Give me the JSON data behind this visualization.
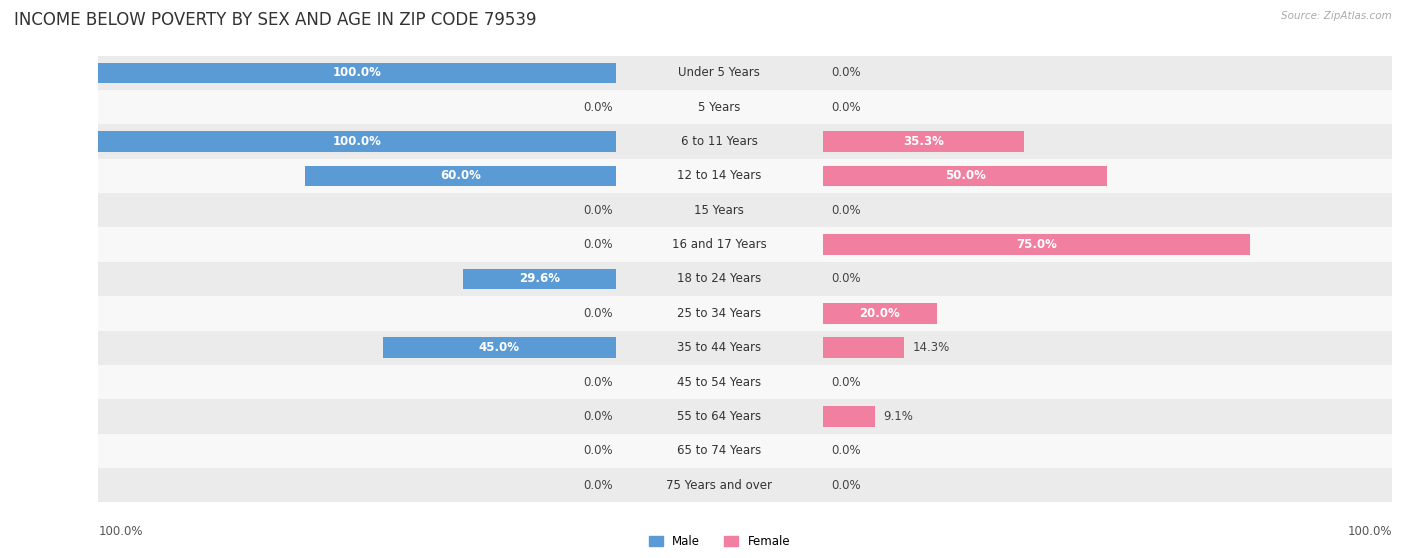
{
  "title": "INCOME BELOW POVERTY BY SEX AND AGE IN ZIP CODE 79539",
  "source": "Source: ZipAtlas.com",
  "categories": [
    "Under 5 Years",
    "5 Years",
    "6 to 11 Years",
    "12 to 14 Years",
    "15 Years",
    "16 and 17 Years",
    "18 to 24 Years",
    "25 to 34 Years",
    "35 to 44 Years",
    "45 to 54 Years",
    "55 to 64 Years",
    "65 to 74 Years",
    "75 Years and over"
  ],
  "male": [
    100.0,
    0.0,
    100.0,
    60.0,
    0.0,
    0.0,
    29.6,
    0.0,
    45.0,
    0.0,
    0.0,
    0.0,
    0.0
  ],
  "female": [
    0.0,
    0.0,
    35.3,
    50.0,
    0.0,
    75.0,
    0.0,
    20.0,
    14.3,
    0.0,
    9.1,
    0.0,
    0.0
  ],
  "male_color_dark": "#5b9bd5",
  "male_color_light": "#9dc3e6",
  "female_color_dark": "#f07fa0",
  "female_color_light": "#f4afc4",
  "bg_row_odd": "#ebebeb",
  "bg_row_even": "#f8f8f8",
  "title_fontsize": 12,
  "label_fontsize": 8.5,
  "tick_fontsize": 8.5,
  "cat_fontsize": 8.5
}
